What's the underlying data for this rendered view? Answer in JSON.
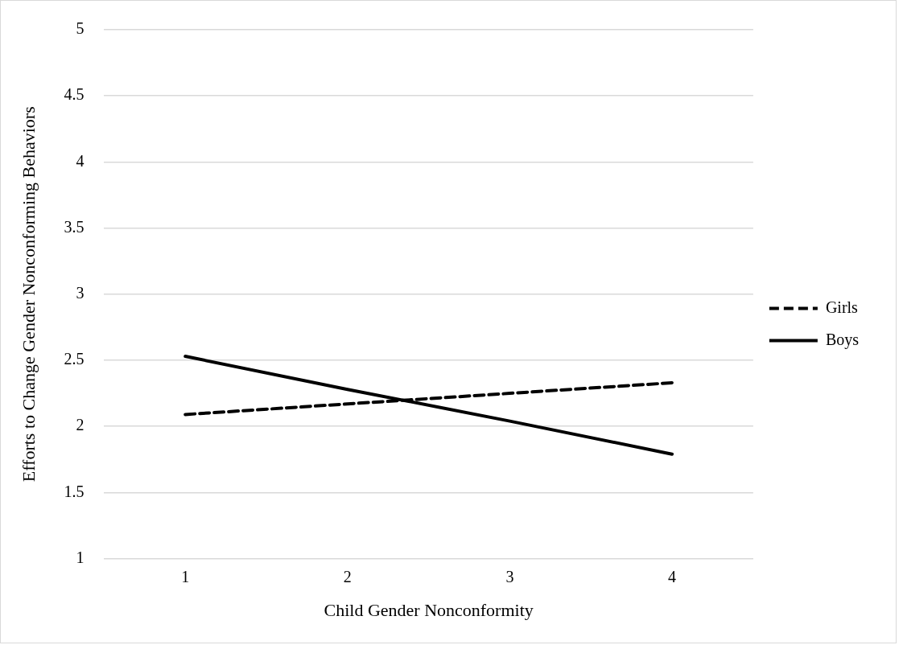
{
  "chart_data": {
    "type": "line",
    "xlabel": "Child Gender Nonconformity",
    "ylabel": "Efforts to Change Gender Nonconforming Behaviors",
    "categories": [
      "1",
      "2",
      "3",
      "4"
    ],
    "series": [
      {
        "name": "Girls",
        "color": "#000000",
        "values": [
          2.09,
          2.17,
          2.25,
          2.33
        ],
        "line_style": "dashed"
      },
      {
        "name": "Boys",
        "color": "#000000",
        "values": [
          2.53,
          2.28,
          2.04,
          1.79
        ],
        "line_style": "solid"
      }
    ],
    "ylim": [
      1,
      5
    ],
    "yticks": [
      1,
      1.5,
      2,
      2.5,
      3,
      3.5,
      4,
      4.5,
      5
    ],
    "grid": "y",
    "legend": "right",
    "marker": "none"
  }
}
